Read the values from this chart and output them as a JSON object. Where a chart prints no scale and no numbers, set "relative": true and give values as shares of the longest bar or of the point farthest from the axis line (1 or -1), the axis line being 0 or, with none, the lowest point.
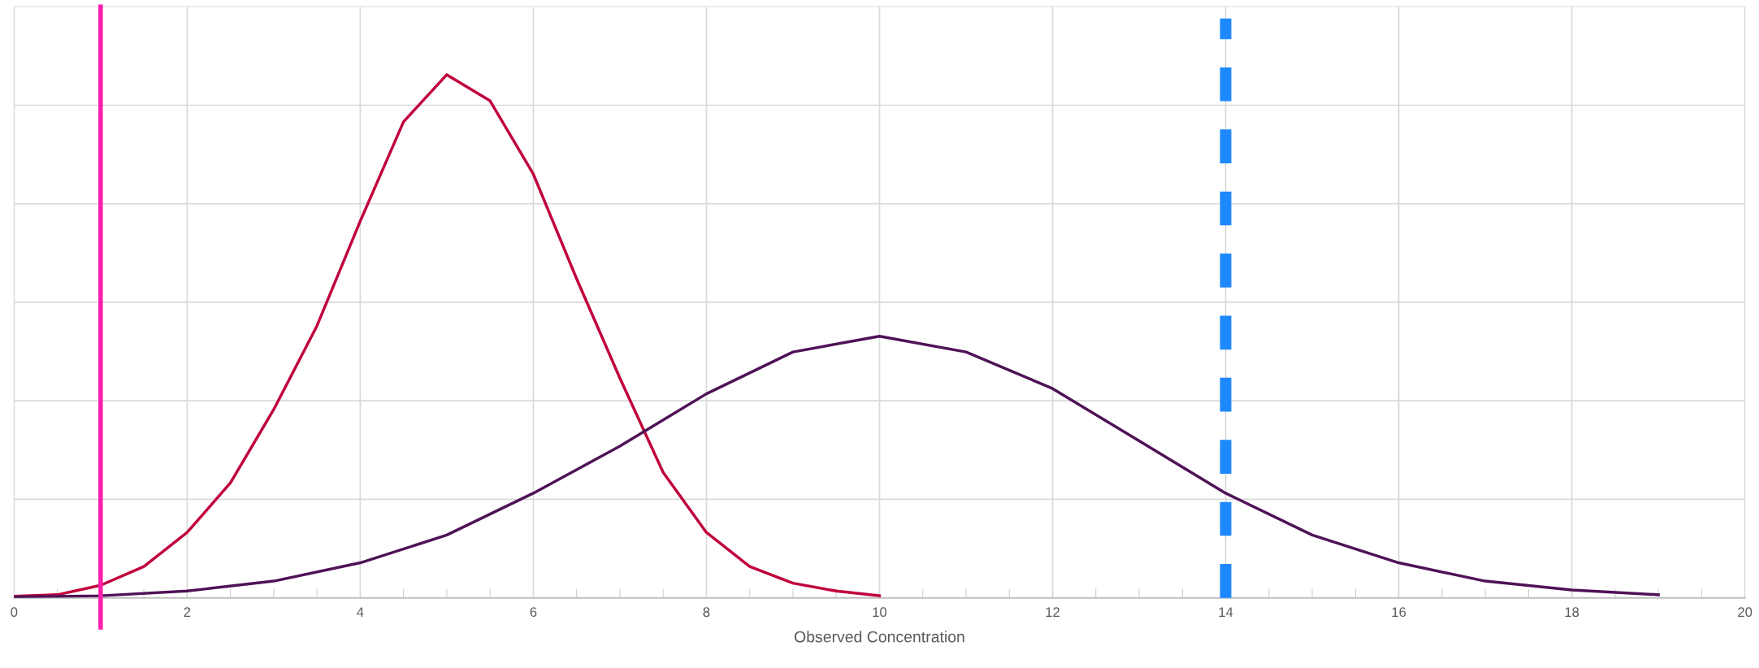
{
  "chart_data": {
    "type": "line",
    "xlabel": "Observed Concentration",
    "relative": true,
    "xlim": [
      0,
      20
    ],
    "xticks": [
      0,
      2,
      4,
      6,
      8,
      10,
      12,
      14,
      16,
      18,
      20
    ],
    "grid": true,
    "marker": "none",
    "line_style": "solid",
    "series": [
      {
        "color": "#c0003c",
        "x": [
          0,
          0.5,
          1,
          1.5,
          2,
          2.5,
          3,
          3.5,
          4,
          4.5,
          5,
          5.5,
          6,
          6.5,
          7,
          7.5,
          8,
          8.5,
          9,
          9.5,
          10
        ],
        "values": [
          0.003,
          0.006,
          0.024,
          0.06,
          0.125,
          0.22,
          0.36,
          0.52,
          0.72,
          0.91,
          1.0,
          0.95,
          0.81,
          0.61,
          0.42,
          0.24,
          0.125,
          0.06,
          0.028,
          0.013,
          0.004
        ]
      },
      {
        "color": "#4f1257",
        "x": [
          0,
          1,
          2,
          3,
          4,
          5,
          6,
          7,
          8,
          9,
          10,
          11,
          12,
          13,
          14,
          15,
          16,
          17,
          18,
          19
        ],
        "values": [
          0.002,
          0.004,
          0.013,
          0.032,
          0.067,
          0.12,
          0.2,
          0.29,
          0.39,
          0.47,
          0.5,
          0.47,
          0.4,
          0.3,
          0.2,
          0.12,
          0.067,
          0.032,
          0.015,
          0.006
        ]
      }
    ],
    "ref_lines": [
      {
        "axis": "x",
        "value": 1,
        "color": "#ff1fae",
        "line_style": "solid"
      },
      {
        "axis": "x",
        "value": 14,
        "color": "#1e88ff",
        "line_style": "dashed"
      }
    ]
  }
}
